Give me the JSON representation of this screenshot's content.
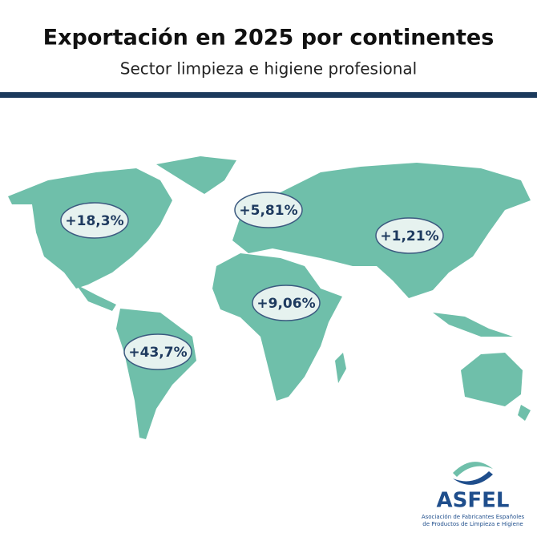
{
  "header": {
    "title": "Exportación en 2025 por continentes",
    "subtitle": "Sector limpieza e higiene profesional"
  },
  "labels": [
    "+18,3%",
    "+5,81%",
    "+1,21%",
    "+9,06%",
    "+43,7%"
  ],
  "logo": {
    "name": "ASFEL",
    "line1": "Asociación de Fabricantes Españoles",
    "line2": "de Productos de Limpieza e Higiene"
  }
}
